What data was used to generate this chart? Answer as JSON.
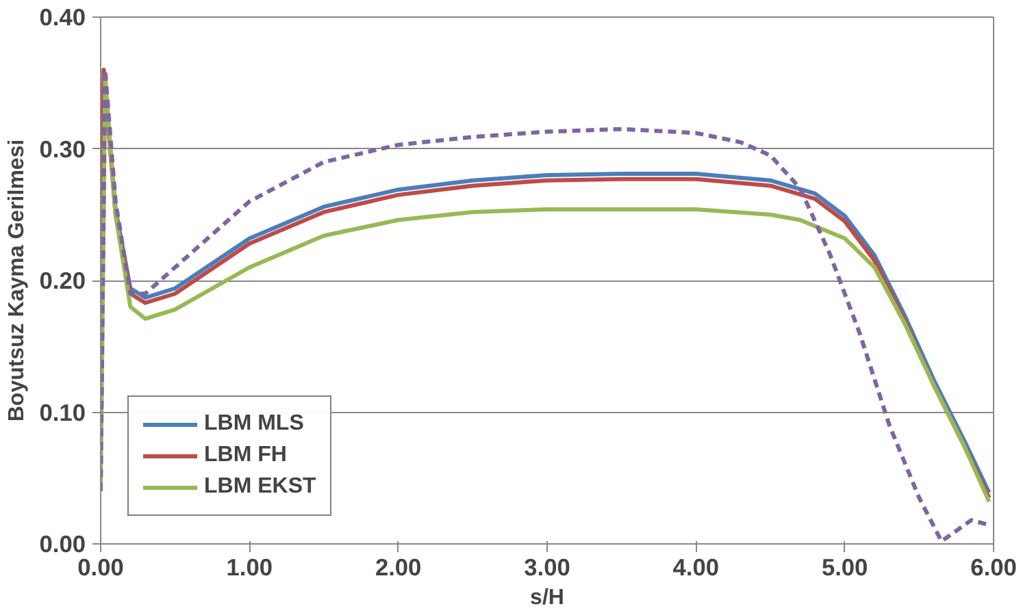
{
  "chart_data": {
    "type": "line",
    "xlabel": "s/H",
    "ylabel": "Boyutsuz Kayma Gerilmesi",
    "xlim": [
      0,
      6
    ],
    "ylim": [
      0,
      0.4
    ],
    "xticks": [
      {
        "value": 0,
        "label": "0.00"
      },
      {
        "value": 1,
        "label": "1.00"
      },
      {
        "value": 2,
        "label": "2.00"
      },
      {
        "value": 3,
        "label": "3.00"
      },
      {
        "value": 4,
        "label": "4.00"
      },
      {
        "value": 5,
        "label": "5.00"
      },
      {
        "value": 6,
        "label": "6.00"
      }
    ],
    "yticks": [
      {
        "value": 0,
        "label": "0.00"
      },
      {
        "value": 0.1,
        "label": "0.10"
      },
      {
        "value": 0.2,
        "label": "0.20"
      },
      {
        "value": 0.3,
        "label": "0.30"
      },
      {
        "value": 0.4,
        "label": "0.40"
      }
    ],
    "grid": "y",
    "legend": "bottom left",
    "marker": "none",
    "series": [
      {
        "name": "LBM MLS",
        "color": "#4a7ebb",
        "line_style": "solid",
        "x": [
          0.02,
          0.1,
          0.2,
          0.3,
          0.5,
          1.0,
          1.5,
          2.0,
          2.5,
          3.0,
          3.5,
          4.0,
          4.5,
          4.8,
          5.0,
          5.2,
          5.4,
          5.6,
          5.8,
          5.97
        ],
        "values": [
          0.36,
          0.254,
          0.194,
          0.187,
          0.194,
          0.232,
          0.256,
          0.269,
          0.276,
          0.28,
          0.281,
          0.281,
          0.276,
          0.266,
          0.249,
          0.219,
          0.174,
          0.124,
          0.079,
          0.039
        ]
      },
      {
        "name": "LBM FH",
        "color": "#be4b48",
        "line_style": "solid",
        "x": [
          0.0,
          0.02,
          0.1,
          0.2,
          0.3,
          0.5,
          1.0,
          1.5,
          2.0,
          2.5,
          3.0,
          3.5,
          4.0,
          4.5,
          4.8,
          5.0,
          5.2,
          5.4,
          5.6,
          5.8,
          5.97
        ],
        "values": [
          0.15,
          0.36,
          0.25,
          0.19,
          0.183,
          0.19,
          0.228,
          0.252,
          0.265,
          0.272,
          0.276,
          0.277,
          0.277,
          0.272,
          0.262,
          0.245,
          0.215,
          0.17,
          0.12,
          0.075,
          0.035
        ]
      },
      {
        "name": "LBM EKST",
        "color": "#98b954",
        "line_style": "solid",
        "x": [
          0.0,
          0.03,
          0.1,
          0.2,
          0.3,
          0.5,
          1.0,
          1.5,
          2.0,
          2.5,
          3.0,
          4.0,
          4.5,
          4.7,
          5.0,
          5.2,
          5.4,
          5.6,
          5.8,
          5.97
        ],
        "values": [
          0.04,
          0.355,
          0.25,
          0.18,
          0.171,
          0.178,
          0.21,
          0.234,
          0.246,
          0.252,
          0.254,
          0.254,
          0.25,
          0.246,
          0.232,
          0.21,
          0.168,
          0.12,
          0.075,
          0.032
        ]
      },
      {
        "color": "#8064a2",
        "line_style": "dashed",
        "x": [
          0.0,
          0.03,
          0.1,
          0.2,
          0.3,
          0.5,
          1.0,
          1.5,
          2.0,
          2.5,
          3.0,
          3.5,
          4.0,
          4.3,
          4.5,
          4.7,
          4.9,
          5.1,
          5.3,
          5.5,
          5.65,
          5.75,
          5.85,
          5.95
        ],
        "values": [
          0.04,
          0.36,
          0.26,
          0.19,
          0.19,
          0.21,
          0.26,
          0.29,
          0.303,
          0.309,
          0.313,
          0.315,
          0.312,
          0.305,
          0.295,
          0.27,
          0.22,
          0.16,
          0.09,
          0.035,
          0.002,
          0.01,
          0.018,
          0.015
        ]
      }
    ]
  }
}
